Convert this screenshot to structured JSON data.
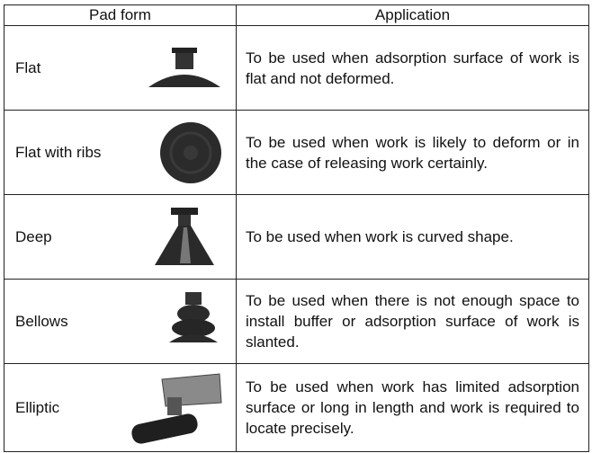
{
  "table": {
    "header": [
      "Pad form",
      "Application"
    ],
    "rows": [
      [
        "Flat",
        "To be used when adsorption surface of work is flat and not deformed."
      ],
      [
        "Flat with ribs",
        "To be used when work is likely to deform or in the case of releasing work certainly."
      ],
      [
        "Deep",
        "To be used when work is curved shape."
      ],
      [
        "Bellows",
        "To be used when there is not enough space to install buffer or adsorption surface of work is slanted."
      ],
      [
        "Elliptic",
        "To be used when work has limited adsorption surface or long in length and work is required to locate precisely."
      ]
    ]
  }
}
